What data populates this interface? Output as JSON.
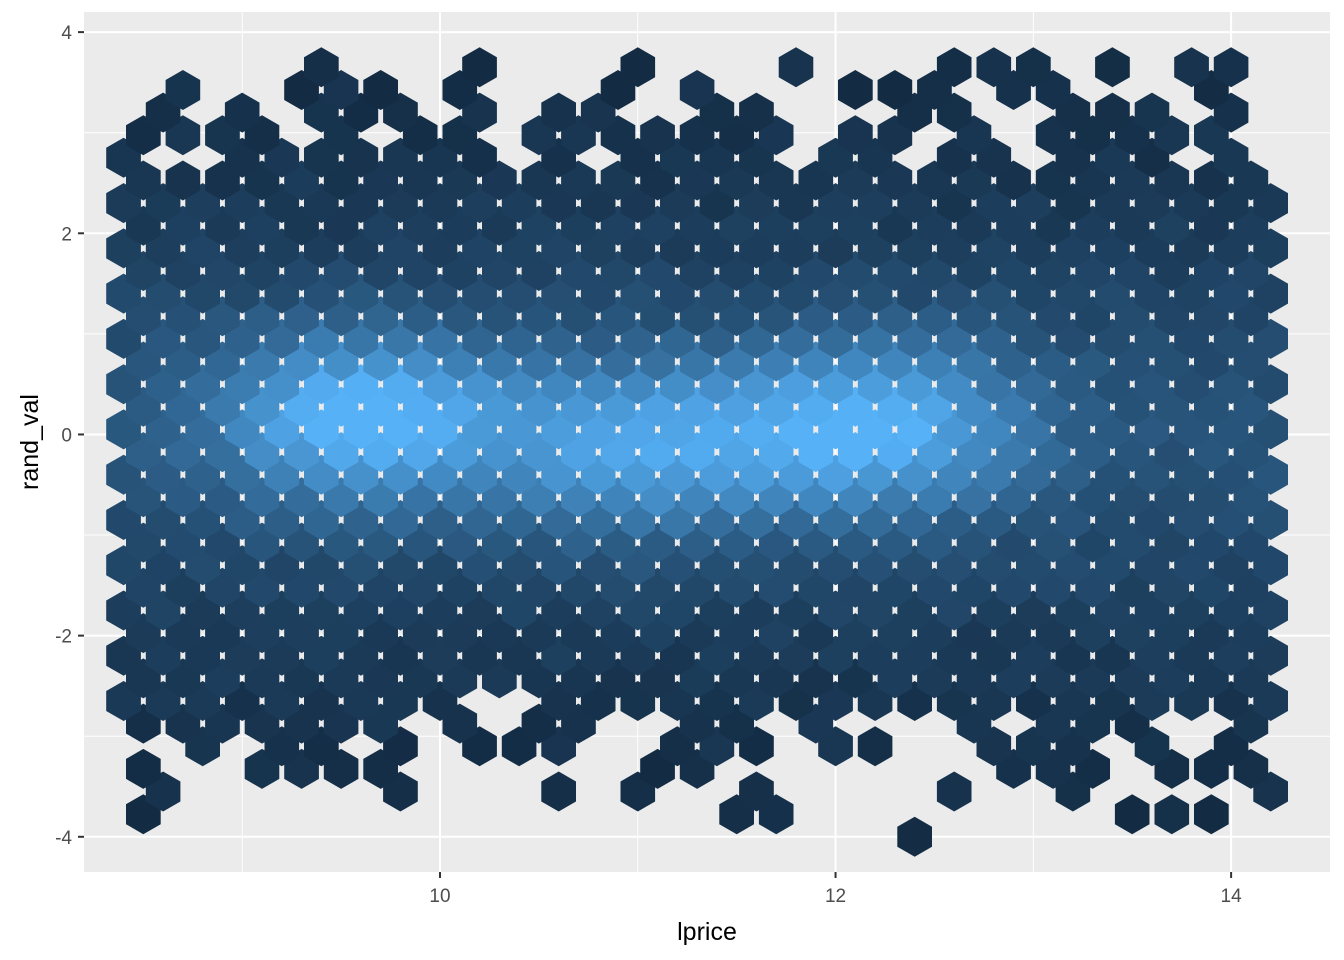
{
  "chart_data": {
    "type": "hexbin",
    "xlabel": "lprice",
    "ylabel": "rand_val",
    "xlim": [
      8.2,
      14.5
    ],
    "ylim": [
      -4.35,
      4.2
    ],
    "x_ticks": [
      10,
      12,
      14
    ],
    "x_tick_labels": [
      "10",
      "12",
      "14"
    ],
    "x_minor_ticks": [
      9,
      11,
      13
    ],
    "y_ticks": [
      4,
      2,
      0,
      -2,
      -4
    ],
    "y_tick_labels": [
      "4",
      "2",
      "0",
      "-2",
      "-4"
    ],
    "y_minor_ticks": [
      3,
      1,
      -1,
      -3
    ],
    "grid": true,
    "panel_color": "#ebebeb",
    "grid_color": "#ffffff",
    "fill_low": "#132b43",
    "fill_high": "#56b1f7",
    "hex_bins": {
      "x_range": [
        8.4,
        14.2
      ],
      "y_range": [
        -4.0,
        3.8
      ],
      "density_centers": [
        {
          "x": 9.6,
          "y": 0.2,
          "weight": 1.0
        },
        {
          "x": 11.0,
          "y": -0.1,
          "weight": 0.75
        },
        {
          "x": 12.2,
          "y": 0.1,
          "weight": 0.95
        }
      ]
    }
  }
}
